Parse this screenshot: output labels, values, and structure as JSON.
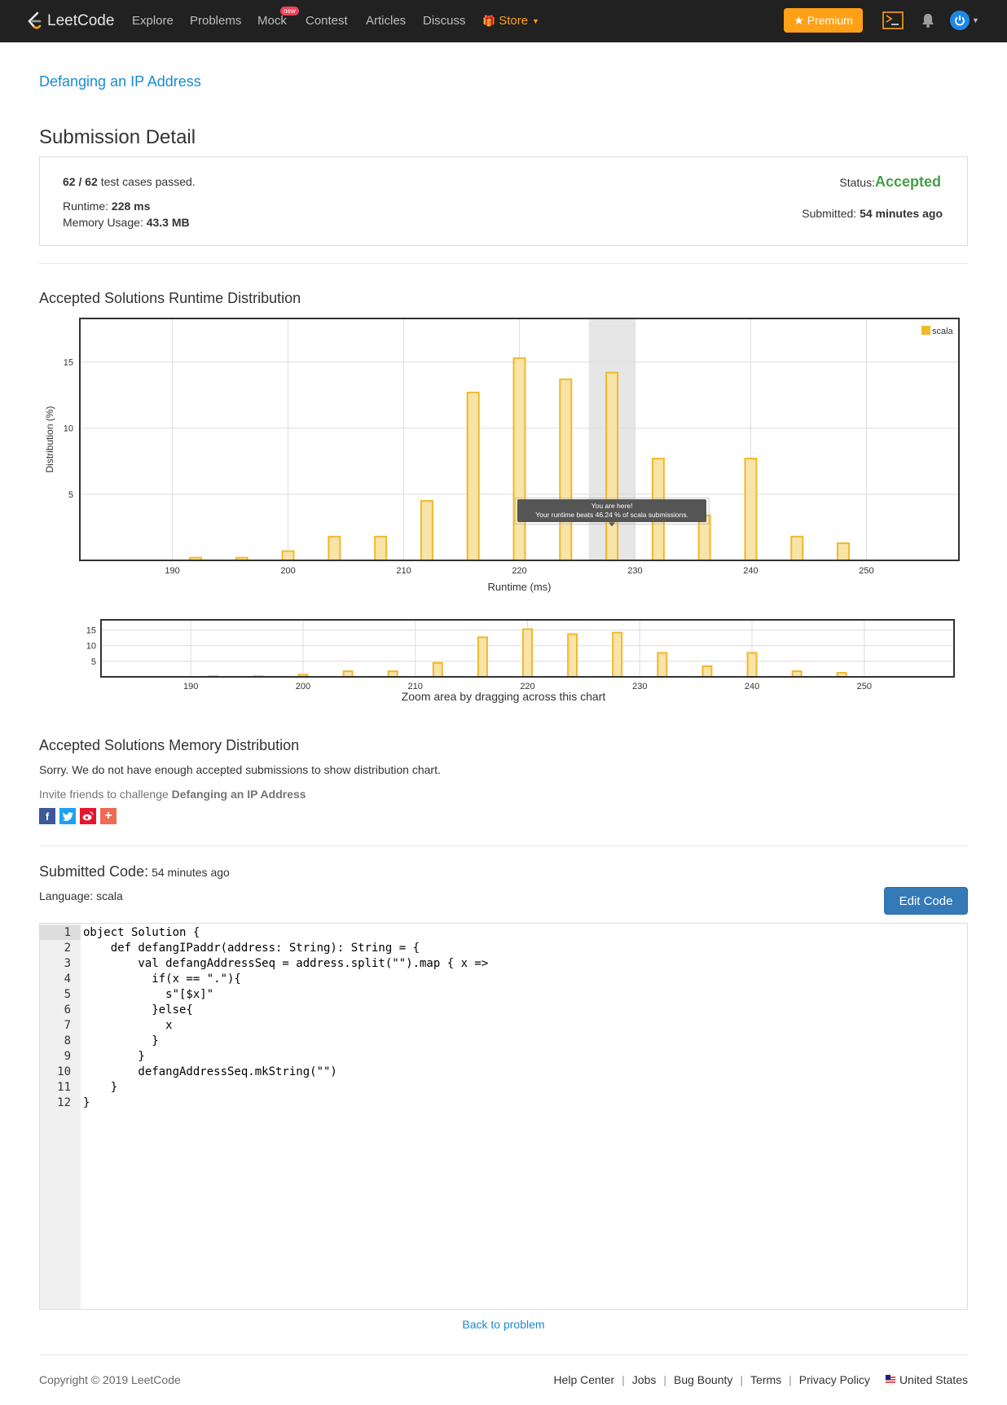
{
  "nav": {
    "brand": "LeetCode",
    "links": [
      "Explore",
      "Problems",
      "Mock",
      "Contest",
      "Articles",
      "Discuss"
    ],
    "new_badge": "new",
    "store": "Store",
    "premium": "Premium",
    "icons": [
      "terminal-icon",
      "bell-icon",
      "user-power-icon",
      "caret-down-icon"
    ]
  },
  "problem_title": "Defanging an IP Address",
  "page_title": "Submission Detail",
  "details": {
    "cases_passed": "62",
    "cases_total": "62",
    "cases_sep": " / ",
    "cases_suffix": " test cases passed.",
    "runtime_label": "Runtime: ",
    "runtime_value": "228 ms",
    "memory_label": "Memory Usage: ",
    "memory_value": "43.3 MB",
    "status_label": "Status: ",
    "status_value": "Accepted",
    "submitted_label": "Submitted: ",
    "submitted_value": "54 minutes ago"
  },
  "runtime_section": {
    "title": "Accepted Solutions Runtime Distribution",
    "zoom_caption": "Zoom area by dragging across this chart"
  },
  "chart_data": {
    "type": "bar",
    "title": "",
    "xlabel": "Runtime (ms)",
    "ylabel": "Distribution (%)",
    "xlim": [
      182,
      258
    ],
    "ylim": [
      0,
      18.3
    ],
    "x_ticks": [
      190,
      200,
      210,
      220,
      230,
      240,
      250
    ],
    "y_ticks": [
      5,
      10,
      15
    ],
    "grid": true,
    "legend_placement": "top-right",
    "colors": {
      "fill": "#f8e3a8",
      "stroke": "#f0b92a",
      "highlight": "#e6e6e6",
      "tooltip": "#555555"
    },
    "series": [
      {
        "name": "scala",
        "x": [
          192,
          196,
          200,
          204,
          208,
          212,
          216,
          220,
          224,
          228,
          232,
          236,
          240,
          244,
          248
        ],
        "values": [
          0.2,
          0.2,
          0.7,
          1.8,
          1.8,
          4.5,
          12.7,
          15.3,
          13.7,
          14.2,
          7.7,
          3.4,
          7.7,
          1.8,
          1.3
        ]
      }
    ],
    "highlight_range": [
      226,
      230
    ],
    "tooltip_title": "You are here!",
    "tooltip_text": "Your runtime beats 46.24 % of scala submissions.",
    "navigator": {
      "y_ticks": [
        5,
        10,
        15
      ],
      "x_ticks": [
        190,
        200,
        210,
        220,
        230,
        240,
        250
      ]
    }
  },
  "memory_section": {
    "title": "Accepted Solutions Memory Distribution",
    "sorry": "Sorry. We do not have enough accepted submissions to show distribution chart."
  },
  "invite": {
    "prefix": "Invite friends to challenge ",
    "problem": "Defanging an IP Address",
    "share_icons": [
      "facebook-icon",
      "twitter-icon",
      "weibo-icon",
      "plus-icon"
    ],
    "share_colors": [
      "#3b5998",
      "#1da1f2",
      "#e6162d",
      "#f06b53"
    ]
  },
  "submitted_code": {
    "title": "Submitted Code: ",
    "time": "54 minutes ago",
    "language_label": "Language: ",
    "language": "scala",
    "edit_button": "Edit Code",
    "lines": [
      "object Solution {",
      "    def defangIPaddr(address: String): String = {",
      "        val defangAddressSeq = address.split(\"\").map { x =>",
      "          if(x == \".\"){",
      "            s\"[$x]\"",
      "          }else{",
      "            x",
      "          }",
      "        }",
      "        defangAddressSeq.mkString(\"\")",
      "    }",
      "}"
    ]
  },
  "back_link": "Back to problem",
  "footer": {
    "copyright": "Copyright © 2019 LeetCode",
    "links": [
      "Help Center",
      "Jobs",
      "Bug Bounty",
      "Terms",
      "Privacy Policy"
    ],
    "region": "United States"
  }
}
